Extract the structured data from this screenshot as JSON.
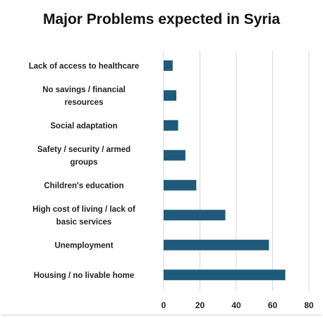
{
  "chart_data": {
    "type": "bar",
    "orientation": "horizontal",
    "title": "Major Problems expected in Syria",
    "xlabel": "",
    "ylabel": "",
    "categories": [
      "Lack of access to healthcare",
      "No savings / financial resources",
      "Social adaptation",
      "Safety / security / armed groups",
      "Children's education",
      "High cost of living / lack of basic services",
      "Unemployment",
      "Housing / no livable home"
    ],
    "category_lines": [
      [
        "Lack of access to healthcare"
      ],
      [
        "No savings / financial",
        "resources"
      ],
      [
        "Social adaptation"
      ],
      [
        "Safety / security / armed",
        "groups"
      ],
      [
        "Children's education"
      ],
      [
        "High cost of living / lack of",
        "basic services"
      ],
      [
        "Unemployment"
      ],
      [
        "Housing / no livable home"
      ]
    ],
    "values": [
      5,
      7,
      8,
      12,
      18,
      34,
      58,
      67
    ],
    "xlim": [
      0,
      80
    ],
    "xticks": [
      0,
      20,
      40,
      60,
      80
    ],
    "grid": true,
    "legend": "none",
    "bar_color": "#1f5a7a",
    "grid_color": "#d9d9d9"
  }
}
